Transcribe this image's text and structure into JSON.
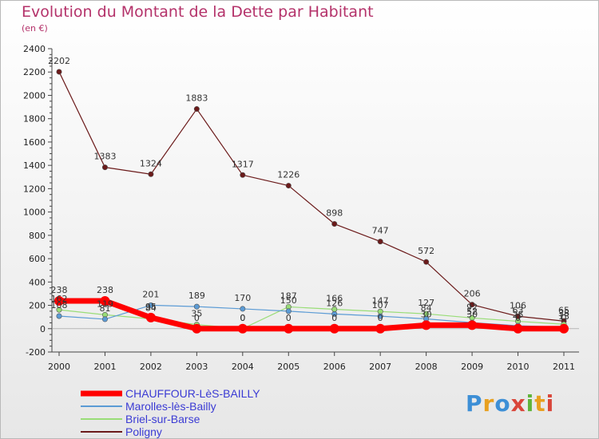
{
  "title": "Evolution du Montant de la Dette par Habitant",
  "subtitle": "(en €)",
  "logo": {
    "text": "Proxiti",
    "letters": [
      "P",
      "r",
      "o",
      "x",
      "i",
      "t",
      "i"
    ]
  },
  "colors": {
    "chauffour": "#ff0000",
    "marolles": "#5b9bd5",
    "briel": "#99dd77",
    "poligny": "#6b1a1a"
  },
  "chart_data": {
    "type": "line",
    "x": [
      "2000",
      "2001",
      "2002",
      "2003",
      "2004",
      "2005",
      "2006",
      "2007",
      "2008",
      "2009",
      "2010",
      "2011"
    ],
    "ylim": [
      -200,
      2400
    ],
    "yticks": [
      -200,
      0,
      200,
      400,
      600,
      800,
      1000,
      1200,
      1400,
      1600,
      1800,
      2000,
      2200,
      2400
    ],
    "grid": false,
    "legend": "bottom-left",
    "series": [
      {
        "name": "CHAUFFOUR-LèS-BAILLY",
        "key": "chauffour",
        "color": "#ff0000",
        "values": [
          238,
          238,
          95,
          0,
          0,
          0,
          0,
          0,
          30,
          30,
          0,
          0
        ]
      },
      {
        "name": "Marolles-lès-Bailly",
        "key": "marolles",
        "color": "#5b9bd5",
        "values": [
          108,
          81,
          201,
          189,
          170,
          150,
          126,
          107,
          84,
          52,
          25,
          13
        ]
      },
      {
        "name": "Briel-sur-Barse",
        "key": "briel",
        "color": "#99dd77",
        "values": [
          162,
          119,
          84,
          35,
          0,
          187,
          166,
          147,
          127,
          92,
          63,
          38
        ]
      },
      {
        "name": "Poligny",
        "key": "poligny",
        "color": "#6b1a1a",
        "values": [
          2202,
          1383,
          1324,
          1883,
          1317,
          1226,
          898,
          747,
          572,
          206,
          106,
          65
        ]
      }
    ]
  }
}
